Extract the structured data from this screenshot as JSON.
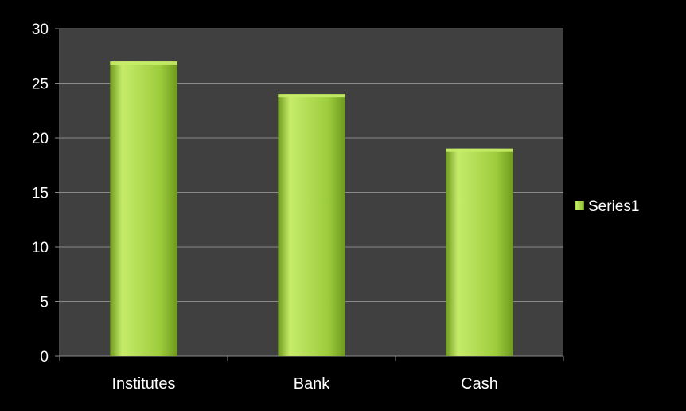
{
  "chart_data": {
    "type": "bar",
    "categories": [
      "Institutes",
      "Bank",
      "Cash"
    ],
    "series": [
      {
        "name": "Series1",
        "values": [
          27,
          24,
          19
        ]
      }
    ],
    "ylim": [
      0,
      30
    ],
    "yticks": [
      0,
      5,
      10,
      15,
      20,
      25,
      30
    ],
    "grid": true,
    "legend": "right",
    "colors": {
      "page_background": "#000000",
      "plot_background": "#404040",
      "gridline": "#8a8a8a",
      "bar_fill": "#9ccc3c",
      "bar_light": "#c6ec6a",
      "bar_dark": "#6f9a1e",
      "text": "#ffffff"
    }
  }
}
